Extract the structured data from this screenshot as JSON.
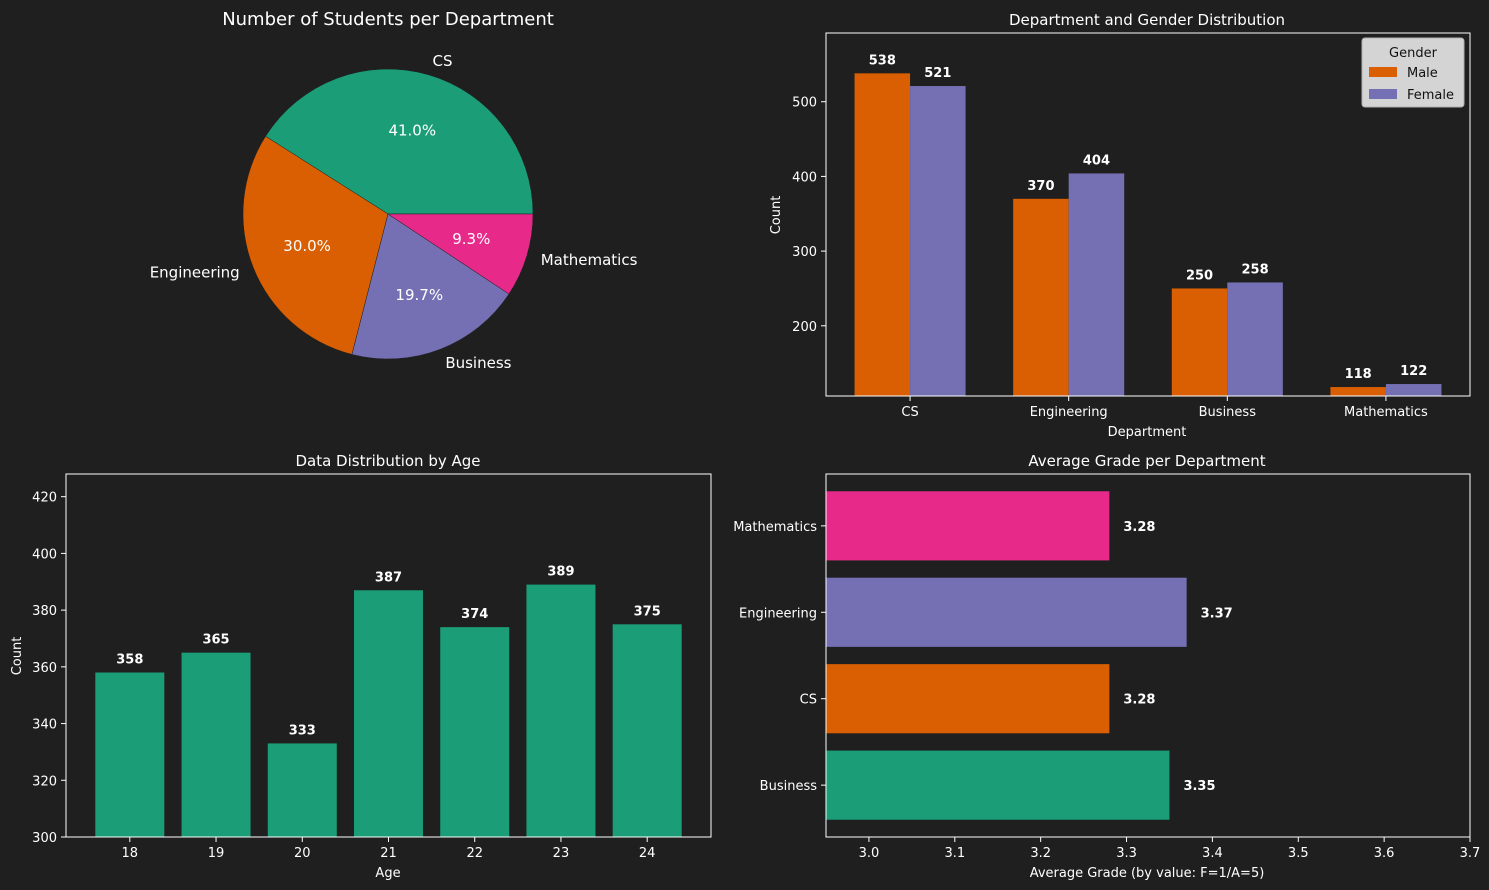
{
  "chart_data": [
    {
      "type": "pie",
      "title": "Number of Students per Department",
      "labels": [
        "CS",
        "Engineering",
        "Business",
        "Mathematics"
      ],
      "values": [
        41.0,
        30.0,
        19.7,
        9.3
      ],
      "pct_labels": [
        "41.0%",
        "30.0%",
        "19.7%",
        "9.3%"
      ],
      "colors": [
        "#1b9e77",
        "#d95f02",
        "#7570b3",
        "#e7298a"
      ]
    },
    {
      "type": "bar",
      "title": "Department and Gender Distribution",
      "xlabel": "Department",
      "ylabel": "Count",
      "categories": [
        "CS",
        "Engineering",
        "Business",
        "Mathematics"
      ],
      "series": [
        {
          "name": "Male",
          "values": [
            538,
            370,
            250,
            118
          ],
          "color": "#d95f02"
        },
        {
          "name": "Female",
          "values": [
            521,
            404,
            258,
            122
          ],
          "color": "#7570b3"
        }
      ],
      "ylim": [
        106,
        592
      ],
      "yticks": [
        200,
        300,
        400,
        500
      ],
      "legend": {
        "title": "Gender",
        "placement": "top-right"
      }
    },
    {
      "type": "bar",
      "title": "Data Distribution by Age",
      "xlabel": "Age",
      "ylabel": "Count",
      "categories": [
        "18",
        "19",
        "20",
        "21",
        "22",
        "23",
        "24"
      ],
      "values": [
        358,
        365,
        333,
        387,
        374,
        389,
        375
      ],
      "color": "#1b9e77",
      "ylim": [
        300,
        428
      ],
      "yticks": [
        300,
        320,
        340,
        360,
        380,
        400,
        420
      ]
    },
    {
      "type": "bar",
      "orientation": "horizontal",
      "title": "Average Grade per Department",
      "xlabel": "Average Grade (by value: F=1/A=5)",
      "categories": [
        "Business",
        "CS",
        "Engineering",
        "Mathematics"
      ],
      "values": [
        3.35,
        3.28,
        3.37,
        3.28
      ],
      "colors": [
        "#1b9e77",
        "#d95f02",
        "#7570b3",
        "#e7298a"
      ],
      "xlim": [
        2.95,
        3.7
      ],
      "xticks": [
        "3.0",
        "3.1",
        "3.2",
        "3.3",
        "3.4",
        "3.5",
        "3.6",
        "3.7"
      ]
    }
  ]
}
